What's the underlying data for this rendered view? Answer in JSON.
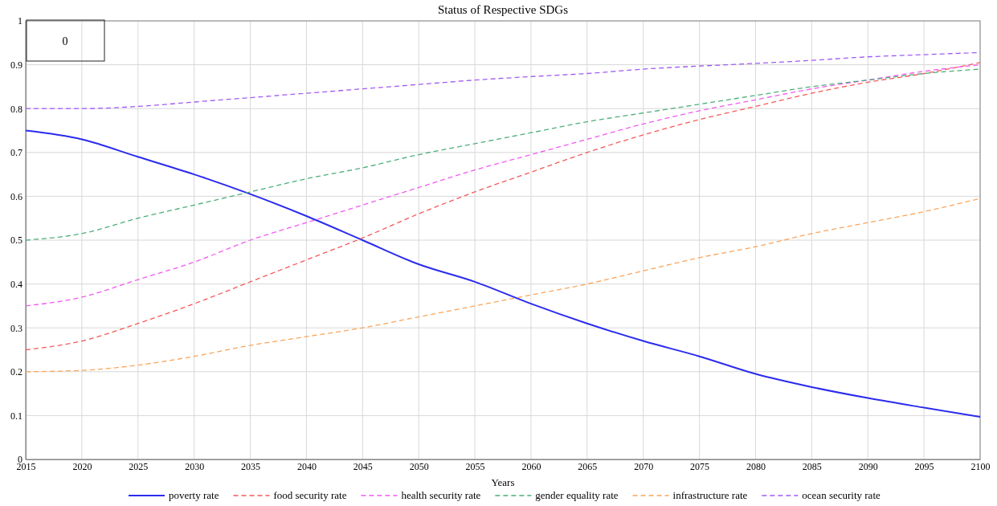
{
  "chart_data": {
    "type": "line",
    "title": "Status of Respective SDGs",
    "xlabel": "Years",
    "annotations": [
      "0"
    ],
    "x": [
      2015,
      2020,
      2025,
      2030,
      2035,
      2040,
      2045,
      2050,
      2055,
      2060,
      2065,
      2070,
      2075,
      2080,
      2085,
      2090,
      2095,
      2100
    ],
    "xlim": [
      2015,
      2100
    ],
    "xticks": [
      2015,
      2020,
      2025,
      2030,
      2035,
      2040,
      2045,
      2050,
      2055,
      2060,
      2065,
      2070,
      2075,
      2080,
      2085,
      2090,
      2095,
      2100
    ],
    "ylim": [
      0,
      1
    ],
    "yticks": [
      0,
      0.1,
      0.2,
      0.3,
      0.4,
      0.5,
      0.6,
      0.7,
      0.8,
      0.9,
      1
    ],
    "grid": true,
    "legend": "bottom",
    "marker": "none",
    "series": [
      {
        "name": "poverty rate",
        "color": "#2b2bf0",
        "line_style": "solid",
        "values": [
          0.75,
          0.73,
          0.69,
          0.65,
          0.605,
          0.555,
          0.5,
          0.445,
          0.405,
          0.355,
          0.31,
          0.27,
          0.235,
          0.195,
          0.165,
          0.14,
          0.118,
          0.097
        ]
      },
      {
        "name": "food security rate",
        "color": "#f55a5a",
        "line_style": "dashed",
        "values": [
          0.25,
          0.27,
          0.31,
          0.355,
          0.405,
          0.455,
          0.505,
          0.56,
          0.61,
          0.655,
          0.7,
          0.74,
          0.775,
          0.805,
          0.835,
          0.86,
          0.88,
          0.905
        ]
      },
      {
        "name": "health security rate",
        "color": "#f25af2",
        "line_style": "dashed",
        "values": [
          0.35,
          0.37,
          0.41,
          0.45,
          0.5,
          0.54,
          0.58,
          0.62,
          0.66,
          0.695,
          0.73,
          0.765,
          0.795,
          0.82,
          0.845,
          0.865,
          0.885,
          0.9
        ]
      },
      {
        "name": "gender equality rate",
        "color": "#4caf7a",
        "line_style": "dashed",
        "values": [
          0.5,
          0.515,
          0.55,
          0.58,
          0.61,
          0.64,
          0.665,
          0.695,
          0.72,
          0.745,
          0.77,
          0.79,
          0.81,
          0.83,
          0.85,
          0.865,
          0.88,
          0.89
        ]
      },
      {
        "name": "infrastructure rate",
        "color": "#f9a55a",
        "line_style": "dashed",
        "values": [
          0.2,
          0.203,
          0.215,
          0.235,
          0.26,
          0.28,
          0.3,
          0.325,
          0.35,
          0.375,
          0.4,
          0.43,
          0.46,
          0.485,
          0.515,
          0.54,
          0.565,
          0.595
        ]
      },
      {
        "name": "ocean security rate",
        "color": "#a05af5",
        "line_style": "dashed",
        "values": [
          0.8,
          0.8,
          0.805,
          0.815,
          0.825,
          0.835,
          0.845,
          0.855,
          0.865,
          0.873,
          0.88,
          0.89,
          0.897,
          0.903,
          0.91,
          0.918,
          0.923,
          0.928
        ]
      }
    ]
  }
}
